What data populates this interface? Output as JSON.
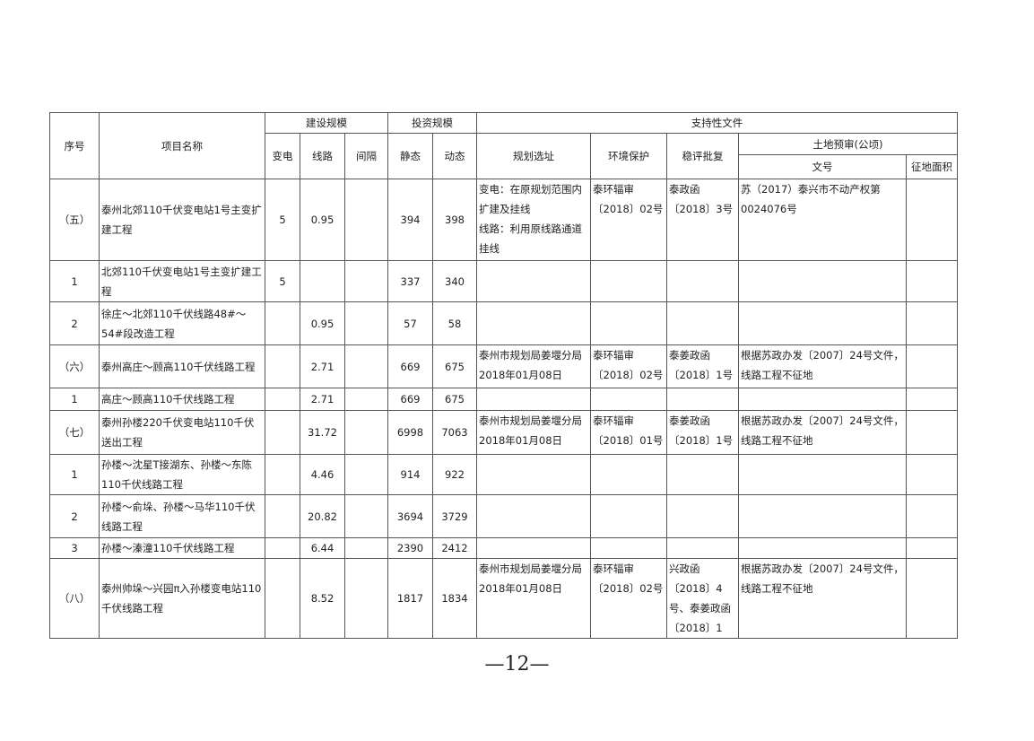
{
  "table": {
    "header": {
      "seq": "序号",
      "name": "项目名称",
      "build": "建设规模",
      "invest": "投资规模",
      "support": "支持性文件",
      "substation": "变电",
      "line": "线路",
      "bay": "间隔",
      "static": "静态",
      "dynamic": "动态",
      "planning": "规划选址",
      "env": "环境保护",
      "stability": "稳评批复",
      "land": "土地预审(公顷)",
      "land_doc": "文号",
      "land_area": "征地面积"
    },
    "rows": [
      [
        "（五）",
        "泰州北郊110千伏变电站1号主变扩建工程",
        "5",
        "0.95",
        null,
        "394",
        "398",
        "变电：在原规划范围内扩建及挂线\n线路：利用原线路通道挂线",
        "泰环辐审〔2018〕02号",
        "泰政函〔2018〕3号",
        "苏（2017）泰兴市不动产权第0024076号",
        null
      ],
      [
        "1",
        "北郊110千伏变电站1号主变扩建工程",
        "5",
        null,
        null,
        "337",
        "340",
        null,
        null,
        null,
        null,
        null
      ],
      [
        "2",
        "徐庄～北郊110千伏线路48#～54#段改造工程",
        null,
        "0.95",
        null,
        "57",
        "58",
        null,
        null,
        null,
        null,
        null
      ],
      [
        "（六）",
        "泰州高庄～顾高110千伏线路工程",
        null,
        "2.71",
        null,
        "669",
        "675",
        "泰州市规划局姜堰分局2018年01月08日",
        "泰环辐审〔2018〕02号",
        "泰姜政函〔2018〕1号",
        "根据苏政办发〔2007〕24号文件，线路工程不征地",
        null
      ],
      [
        "1",
        "高庄～顾高110千伏线路工程",
        null,
        "2.71",
        null,
        "669",
        "675",
        null,
        null,
        null,
        null,
        null
      ],
      [
        "（七）",
        "泰州孙楼220千伏变电站110千伏送出工程",
        null,
        "31.72",
        null,
        "6998",
        "7063",
        "泰州市规划局姜堰分局2018年01月08日",
        "泰环辐审〔2018〕01号",
        "泰姜政函〔2018〕1号",
        "根据苏政办发〔2007〕24号文件，线路工程不征地",
        null
      ],
      [
        "1",
        "孙楼～沈星T接湖东、孙楼～东陈110千伏线路工程",
        null,
        "4.46",
        null,
        "914",
        "922",
        null,
        null,
        null,
        null,
        null
      ],
      [
        "2",
        "孙楼～俞垛、孙楼～马华110千伏线路工程",
        null,
        "20.82",
        null,
        "3694",
        "3729",
        null,
        null,
        null,
        null,
        null
      ],
      [
        "3",
        "孙楼～溱潼110千伏线路工程",
        null,
        "6.44",
        null,
        "2390",
        "2412",
        null,
        null,
        null,
        null,
        null
      ],
      [
        "（八）",
        "泰州帅垛～兴园π入孙楼变电站110千伏线路工程",
        null,
        "8.52",
        null,
        "1817",
        "1834",
        "泰州市规划局姜堰分局2018年01月08日",
        "泰环辐审〔2018〕02号",
        "兴政函〔2018〕4号、泰姜政函〔2018〕1",
        "根据苏政办发〔2007〕24号文件，线路工程不征地",
        null
      ]
    ]
  },
  "footer": {
    "page_number": "—12—"
  }
}
